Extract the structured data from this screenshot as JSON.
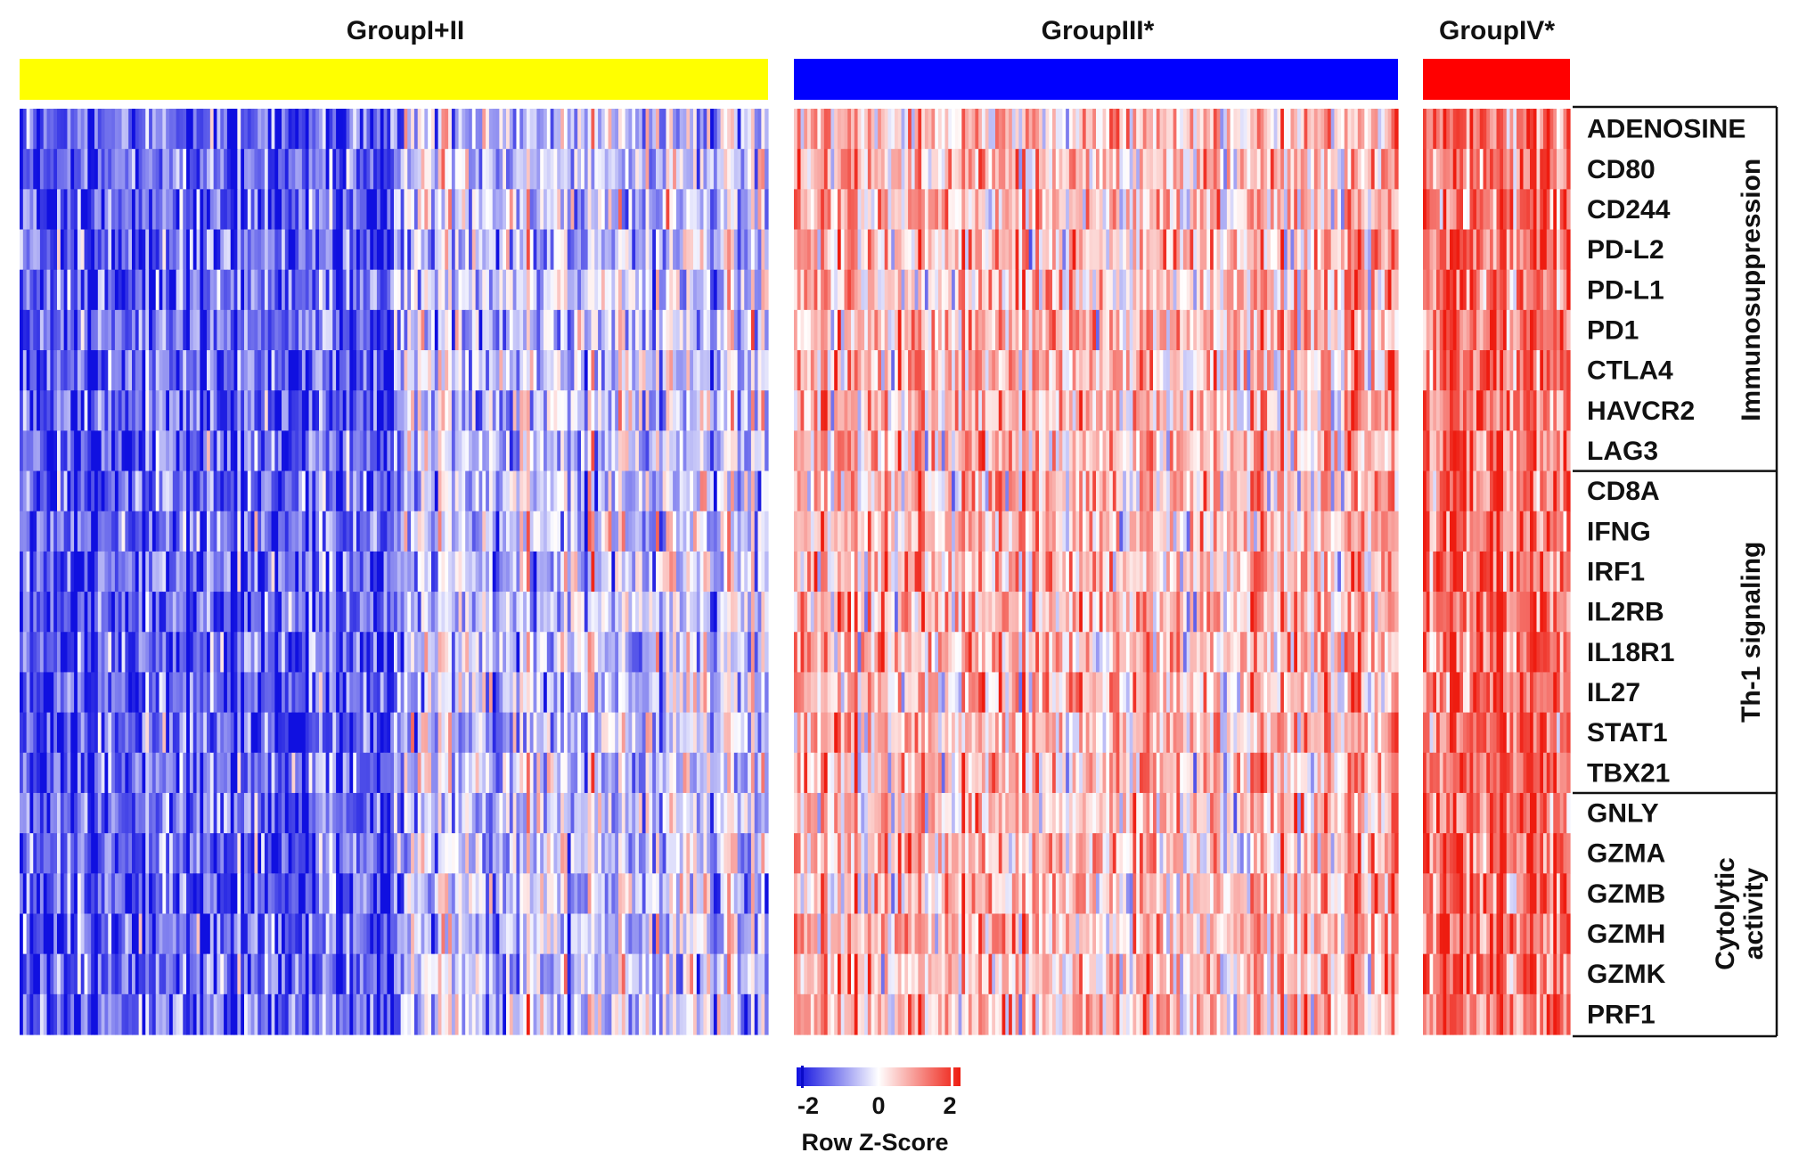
{
  "chart_data": {
    "type": "heatmap",
    "title": "",
    "color_scale": {
      "label": "Row Z-Score",
      "min": -2,
      "mid": 0,
      "max": 2,
      "tick_labels": [
        "-2",
        "0",
        "2"
      ],
      "low_color": "#1010e0",
      "mid_color": "#ffffff",
      "high_color": "#ee1c10"
    },
    "groups": [
      {
        "name": "GroupI+II",
        "color": "#ffff00",
        "mean_z": -0.75
      },
      {
        "name": "GroupIII*",
        "color": "#0000ff",
        "mean_z": 0.55
      },
      {
        "name": "GroupIV*",
        "color": "#ff0000",
        "mean_z": 1.25
      }
    ],
    "genes": [
      "ADENOSINE",
      "CD80",
      "CD244",
      "PD-L2",
      "PD-L1",
      "PD1",
      "CTLA4",
      "HAVCR2",
      "LAG3",
      "CD8A",
      "IFNG",
      "IRF1",
      "IL2RB",
      "IL18R1",
      "IL27",
      "STAT1",
      "TBX21",
      "GNLY",
      "GZMA",
      "GZMB",
      "GZMH",
      "GZMK",
      "PRF1"
    ],
    "categories": [
      {
        "name": "Immunosuppression",
        "lines": [
          "Immunosuppression"
        ],
        "genes": [
          "ADENOSINE",
          "CD80",
          "CD244",
          "PD-L2",
          "PD-L1",
          "PD1",
          "CTLA4",
          "HAVCR2",
          "LAG3"
        ]
      },
      {
        "name": "Th-1 signaling",
        "lines": [
          "Th-1 signaling"
        ],
        "genes": [
          "CD8A",
          "IFNG",
          "IRF1",
          "IL2RB",
          "IL18R1",
          "IL27",
          "STAT1",
          "TBX21"
        ]
      },
      {
        "name": "Cytolytic activity",
        "lines": [
          "Cytolytic",
          "activity"
        ],
        "genes": [
          "GNLY",
          "GZMA",
          "GZMB",
          "GZMH",
          "GZMK",
          "PRF1"
        ]
      }
    ]
  }
}
